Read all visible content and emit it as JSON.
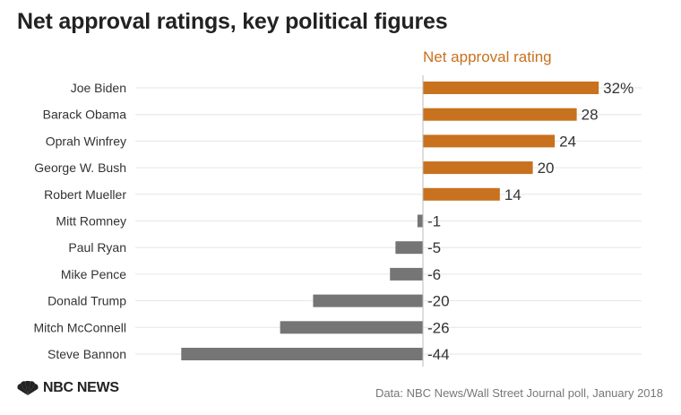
{
  "title": "Net approval ratings, key political figures",
  "source": "Data: NBC News/Wall Street Journal poll, January 2018",
  "logo": {
    "text": "NBC NEWS",
    "icon": "peacock-icon"
  },
  "colors": {
    "positive": "#c8711e",
    "negative": "#757575",
    "series_label": "#c8711e",
    "gridline": "#e6e6e6",
    "zero_line": "#bbbbbb"
  },
  "chart_data": {
    "type": "bar",
    "orientation": "horizontal",
    "series_label": "Net approval rating",
    "value_suffix_first": "%",
    "categories": [
      "Joe Biden",
      "Barack Obama",
      "Oprah Winfrey",
      "George W. Bush",
      "Robert Mueller",
      "Mitt Romney",
      "Paul Ryan",
      "Mike Pence",
      "Donald Trump",
      "Mitch McConnell",
      "Steve Bannon"
    ],
    "values": [
      32,
      28,
      24,
      20,
      14,
      -1,
      -5,
      -6,
      -20,
      -26,
      -44
    ],
    "value_labels": [
      "32%",
      "28",
      "24",
      "20",
      "14",
      "-1",
      "-5",
      "-6",
      "-20",
      "-26",
      "-44"
    ],
    "xlim": [
      -44,
      32
    ],
    "grid": true
  }
}
